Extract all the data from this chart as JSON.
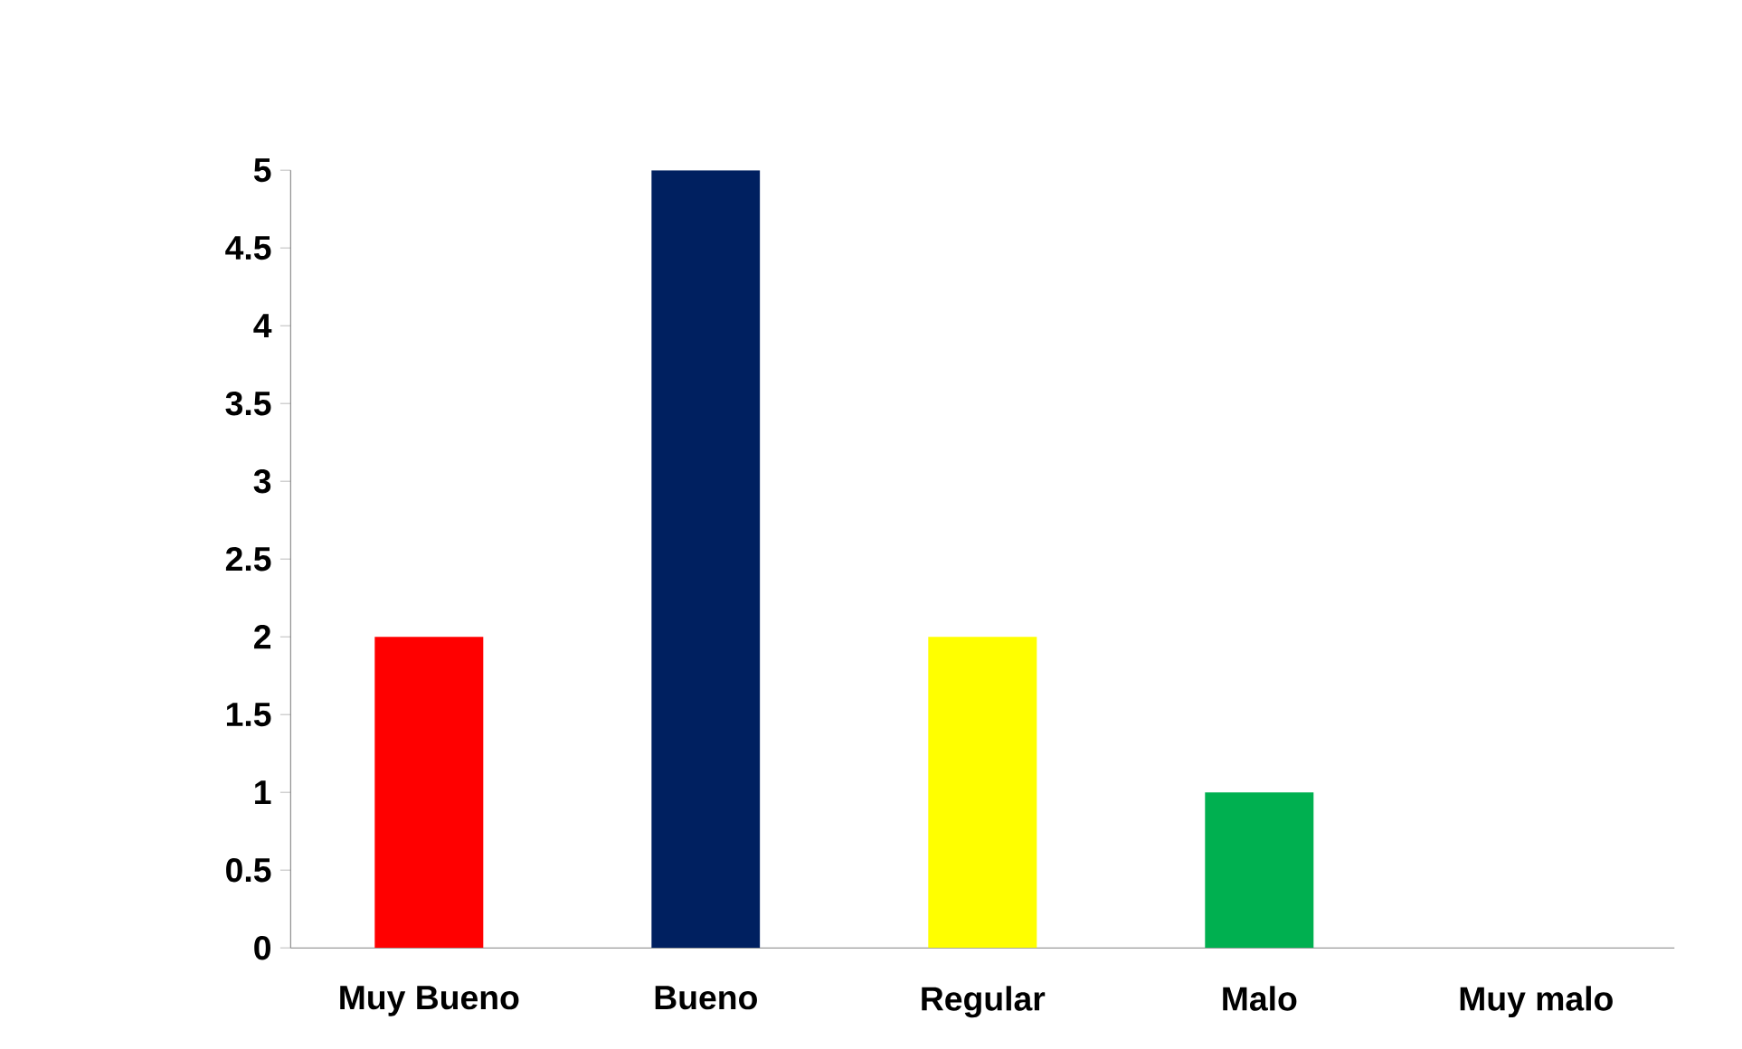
{
  "chart_data": {
    "type": "bar",
    "categories": [
      "Muy Bueno",
      "Bueno",
      "Regular",
      "Malo",
      "Muy malo"
    ],
    "values": [
      2,
      5,
      2,
      1,
      0
    ],
    "colors": [
      "#ff0000",
      "#002060",
      "#ffff00",
      "#00b050",
      "#c55a11"
    ],
    "ylim": [
      0,
      5
    ],
    "yticks": [
      0,
      0.5,
      1,
      1.5,
      2,
      2.5,
      3,
      3.5,
      4,
      4.5,
      5
    ],
    "grid": false
  }
}
